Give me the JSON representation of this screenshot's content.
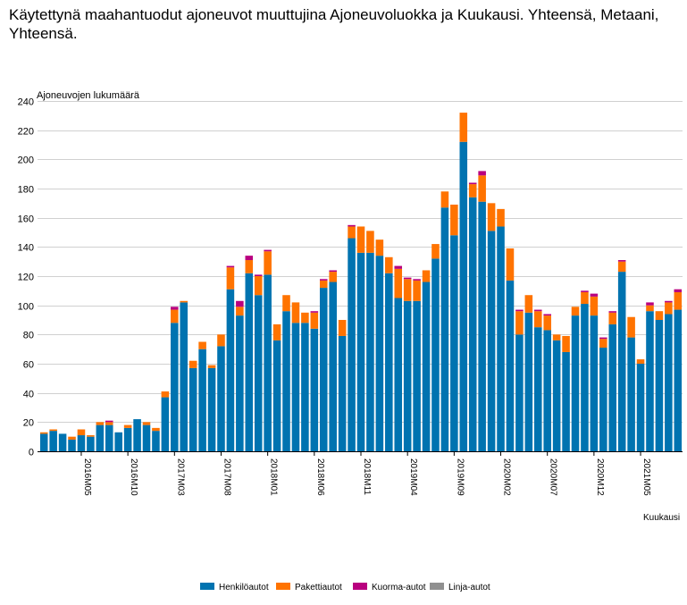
{
  "title": "Käytettynä maahantuodut ajoneuvot muuttujina Ajoneuvoluokka ja Kuukausi. Yhteensä, Metaani, Yhteensä.",
  "chart_data": {
    "type": "bar",
    "stacked": true,
    "title": "Käytettynä maahantuodut ajoneuvot muuttujina Ajoneuvoluokka ja Kuukausi. Yhteensä, Metaani, Yhteensä.",
    "ylabel": "Ajoneuvojen lukumäärä",
    "xlabel": "Kuukausi",
    "ylim": [
      0,
      240
    ],
    "yticks": [
      0,
      20,
      40,
      60,
      80,
      100,
      120,
      140,
      160,
      180,
      200,
      220,
      240
    ],
    "grid": true,
    "legend_position": "bottom",
    "first_month": "2016M01",
    "x_tick_labels": [
      "2016M05",
      "2016M10",
      "2017M03",
      "2017M08",
      "2018M01",
      "2018M06",
      "2018M11",
      "2019M04",
      "2019M09",
      "2020M02",
      "2020M07",
      "2020M12",
      "2021M05"
    ],
    "x_tick_indices": [
      4,
      9,
      14,
      19,
      24,
      29,
      34,
      39,
      44,
      49,
      54,
      59,
      64
    ],
    "series": [
      {
        "name": "Henkilöautot",
        "color": "#0073b0",
        "values": [
          12,
          14,
          12,
          8,
          11,
          10,
          18,
          18,
          13,
          16,
          22,
          18,
          14,
          37,
          88,
          102,
          57,
          70,
          57,
          72,
          111,
          93,
          122,
          107,
          121,
          76,
          96,
          88,
          88,
          84,
          112,
          116,
          79,
          146,
          136,
          136,
          134,
          122,
          105,
          103,
          103,
          116,
          132,
          167,
          148,
          212,
          174,
          171,
          151,
          154,
          117,
          80,
          95,
          85,
          83,
          76,
          68,
          93,
          101,
          93,
          71,
          87,
          123,
          78,
          60,
          96,
          90,
          94,
          97
        ]
      },
      {
        "name": "Pakettiautot",
        "color": "#ff7300",
        "values": [
          1,
          1,
          0,
          2,
          4,
          1,
          2,
          2,
          0,
          2,
          0,
          2,
          2,
          4,
          9,
          1,
          5,
          5,
          2,
          8,
          15,
          6,
          9,
          13,
          16,
          11,
          11,
          14,
          7,
          11,
          5,
          7,
          11,
          8,
          18,
          15,
          11,
          11,
          20,
          15,
          14,
          8,
          10,
          11,
          21,
          20,
          9,
          18,
          19,
          12,
          22,
          16,
          12,
          11,
          10,
          4,
          11,
          6,
          8,
          13,
          6,
          8,
          7,
          14,
          3,
          4,
          6,
          8,
          12
        ]
      },
      {
        "name": "Kuorma-autot",
        "color": "#b9007f",
        "values": [
          0,
          0,
          0,
          0,
          0,
          0,
          0,
          1,
          0,
          0,
          0,
          0,
          0,
          0,
          2,
          0,
          0,
          0,
          0,
          0,
          1,
          4,
          3,
          1,
          1,
          0,
          0,
          0,
          0,
          1,
          1,
          1,
          0,
          1,
          0,
          0,
          0,
          0,
          2,
          1,
          1,
          0,
          0,
          0,
          0,
          0,
          1,
          3,
          0,
          0,
          0,
          1,
          0,
          1,
          1,
          0,
          0,
          0,
          1,
          2,
          1,
          1,
          1,
          0,
          0,
          2,
          0,
          1,
          2
        ]
      },
      {
        "name": "Linja-autot",
        "color": "#909090",
        "values": [
          0,
          0,
          0,
          0,
          0,
          0,
          0,
          0,
          0,
          0,
          0,
          0,
          0,
          0,
          0,
          0,
          0,
          0,
          0,
          0,
          0,
          0,
          0,
          0,
          0,
          0,
          0,
          0,
          0,
          0,
          0,
          0,
          0,
          0,
          0,
          0,
          0,
          0,
          0,
          0,
          0,
          0,
          0,
          0,
          0,
          0,
          0,
          0,
          0,
          0,
          0,
          0,
          0,
          0,
          0,
          0,
          0,
          0,
          0,
          0,
          0,
          0,
          0,
          0,
          0,
          0,
          0,
          0,
          0
        ]
      }
    ]
  }
}
